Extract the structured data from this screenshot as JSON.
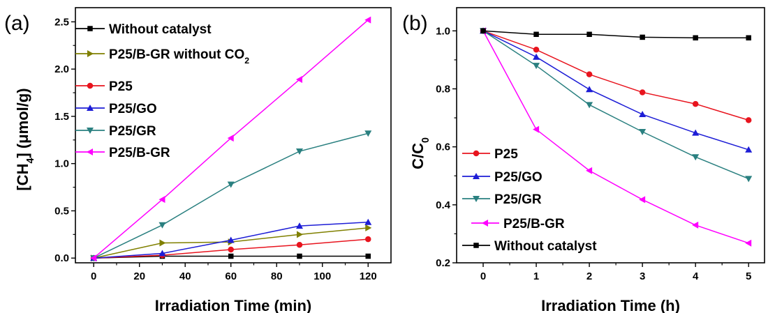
{
  "chart_data": [
    {
      "type": "line",
      "panel_label": "(a)",
      "xlabel": "Irradiation Time (min)",
      "ylabel": "[CH4] (μmol/g)",
      "ylabel_parts": {
        "open": "[",
        "main": "CH",
        "sub": "4",
        "close": "]",
        "unit": "(μmol/g)"
      },
      "xlim": [
        -8,
        130
      ],
      "ylim": [
        -0.05,
        2.65
      ],
      "xticks": [
        0,
        20,
        40,
        60,
        80,
        100,
        120
      ],
      "xtick_labels": [
        "0",
        "20",
        "40",
        "60",
        "80",
        "100",
        "120"
      ],
      "yticks": [
        0.0,
        0.5,
        1.0,
        1.5,
        2.0,
        2.5
      ],
      "ytick_labels": [
        "0.0",
        "0.5",
        "1.0",
        "1.5",
        "2.0",
        "2.5"
      ],
      "legend_position": "top-left",
      "x": [
        0,
        30,
        60,
        90,
        120
      ],
      "series": [
        {
          "name": "Without catalyst",
          "color": "#000000",
          "marker": "square",
          "values": [
            0.0,
            0.02,
            0.02,
            0.02,
            0.02
          ]
        },
        {
          "name": "P25/B-GR without CO2",
          "legend_parts": {
            "main": "P25/B-GR without CO",
            "sub": "2"
          },
          "color": "#808000",
          "marker": "triangle-right",
          "values": [
            0.0,
            0.16,
            0.17,
            0.25,
            0.32
          ]
        },
        {
          "name": "P25",
          "color": "#e8141e",
          "marker": "circle",
          "values": [
            0.0,
            0.03,
            0.09,
            0.14,
            0.2
          ]
        },
        {
          "name": "P25/GO",
          "color": "#1d1dd6",
          "marker": "triangle-up",
          "values": [
            0.0,
            0.05,
            0.19,
            0.34,
            0.38
          ]
        },
        {
          "name": "P25/GR",
          "color": "#2a8080",
          "marker": "triangle-down",
          "values": [
            0.0,
            0.35,
            0.78,
            1.13,
            1.32
          ]
        },
        {
          "name": "P25/B-GR",
          "color": "#ff00ff",
          "marker": "triangle-left",
          "values": [
            0.0,
            0.62,
            1.27,
            1.89,
            2.52
          ]
        }
      ]
    },
    {
      "type": "line",
      "panel_label": "(b)",
      "xlabel": "Irradiation Time (h)",
      "ylabel": "C/C0",
      "ylabel_parts": {
        "main": "C/C",
        "sub": "0"
      },
      "xlim": [
        -0.5,
        5.3
      ],
      "ylim": [
        0.2,
        1.08
      ],
      "xticks": [
        0,
        1,
        2,
        3,
        4,
        5
      ],
      "xtick_labels": [
        "0",
        "1",
        "2",
        "3",
        "4",
        "5"
      ],
      "yticks": [
        0.2,
        0.4,
        0.6,
        0.8,
        1.0
      ],
      "ytick_labels": [
        "0.2",
        "0.4",
        "0.6",
        "0.8",
        "1.0"
      ],
      "legend_position": "bottom-left",
      "x": [
        0,
        1,
        2,
        3,
        4,
        5
      ],
      "series": [
        {
          "name": "P25",
          "color": "#e8141e",
          "marker": "circle",
          "values": [
            1.0,
            0.935,
            0.85,
            0.788,
            0.748,
            0.692
          ]
        },
        {
          "name": "P25/GO",
          "color": "#1d1dd6",
          "marker": "triangle-up",
          "values": [
            1.0,
            0.91,
            0.798,
            0.712,
            0.648,
            0.59
          ]
        },
        {
          "name": "P25/GR",
          "color": "#2a8080",
          "marker": "triangle-down",
          "values": [
            1.0,
            0.88,
            0.745,
            0.652,
            0.565,
            0.49
          ]
        },
        {
          "name": "P25/B-GR",
          "color": "#ff00ff",
          "marker": "triangle-left",
          "values": [
            1.0,
            0.66,
            0.518,
            0.418,
            0.33,
            0.268
          ]
        },
        {
          "name": "Without catalyst",
          "color": "#000000",
          "marker": "square",
          "values": [
            1.0,
            0.988,
            0.988,
            0.978,
            0.976,
            0.976
          ]
        }
      ]
    }
  ]
}
